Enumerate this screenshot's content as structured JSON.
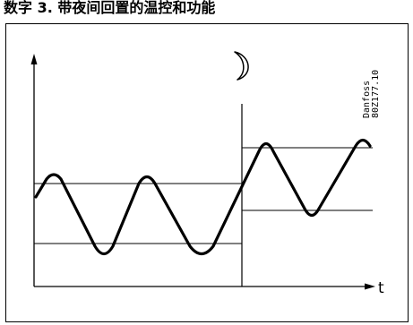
{
  "heading": "数字 3. 带夜间回置的温控和功能",
  "diagram": {
    "brand": "Danfoss",
    "code": "80Z177.10",
    "x_axis_label": "t",
    "moon_icon": "crescent-moon-icon",
    "day_band": {
      "upper": "upper-limit",
      "lower": "lower-limit"
    },
    "night_band": {
      "upper": "upper-limit",
      "lower": "lower-limit"
    }
  }
}
